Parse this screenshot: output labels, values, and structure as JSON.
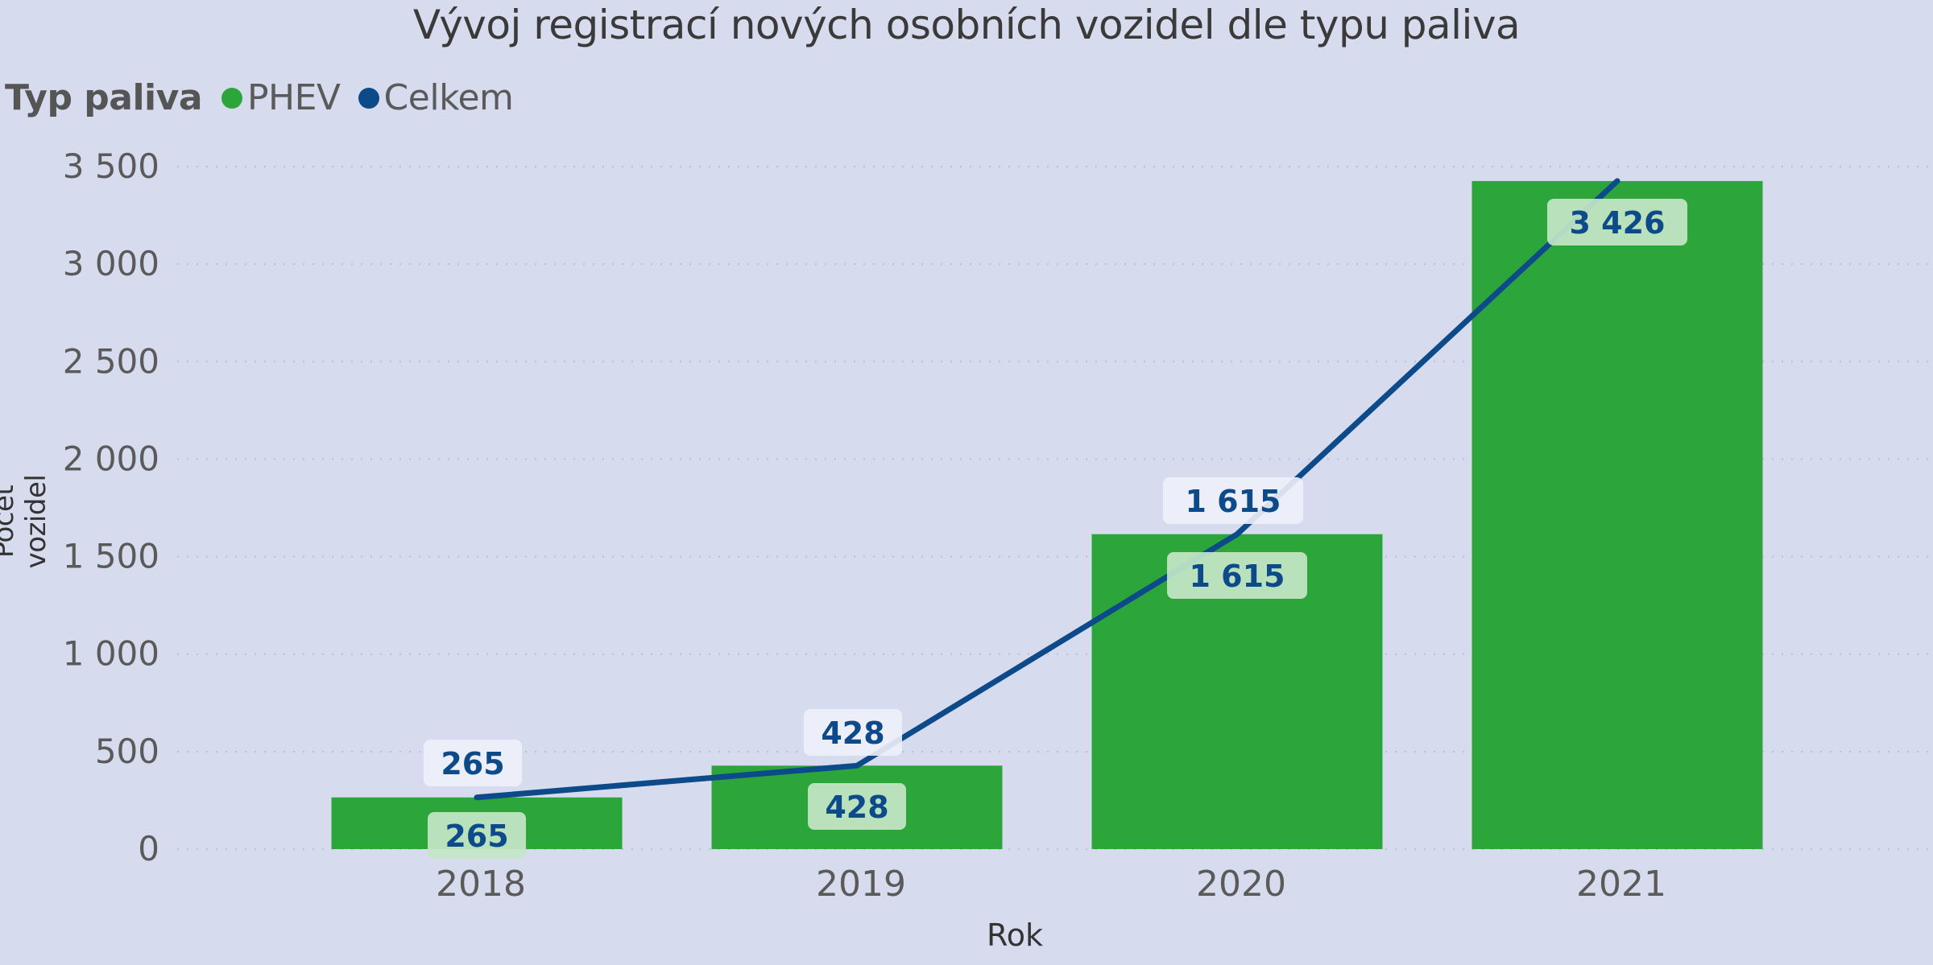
{
  "chart_data": {
    "type": "bar+line",
    "title": "Vývoj registrací nových osobních vozidel dle typu paliva",
    "legend": {
      "title": "Typ paliva",
      "position": "top-left",
      "entries": [
        {
          "label": "PHEV",
          "color": "#2ca63a"
        },
        {
          "label": "Celkem",
          "color": "#0c4a8a"
        }
      ]
    },
    "xlabel": "Rok",
    "ylabel": "Počet vozidel",
    "categories": [
      "2018",
      "2019",
      "2020",
      "2021"
    ],
    "series": [
      {
        "name": "PHEV",
        "type": "bar",
        "color": "#2ca63a",
        "values": [
          265,
          428,
          1615,
          3426
        ],
        "labels": [
          "265",
          "428",
          "1 615",
          "3 426"
        ]
      },
      {
        "name": "Celkem",
        "type": "line",
        "color": "#0c4a8a",
        "values": [
          265,
          428,
          1615,
          3426
        ],
        "labels": [
          "265",
          "428",
          "1 615",
          "3 426"
        ]
      }
    ],
    "ylim": [
      0,
      3500
    ],
    "yticks": [
      0,
      500,
      1000,
      1500,
      2000,
      2500,
      3000,
      3500
    ],
    "ytick_labels": [
      "0",
      "500",
      "1 000",
      "1 500",
      "2 000",
      "2 500",
      "3 000",
      "3 500"
    ],
    "grid": true
  },
  "colors": {
    "background": "#d6dcee",
    "bar": "#2ca63a",
    "line": "#0c4a8a",
    "label_text": "#0c4a8a"
  }
}
